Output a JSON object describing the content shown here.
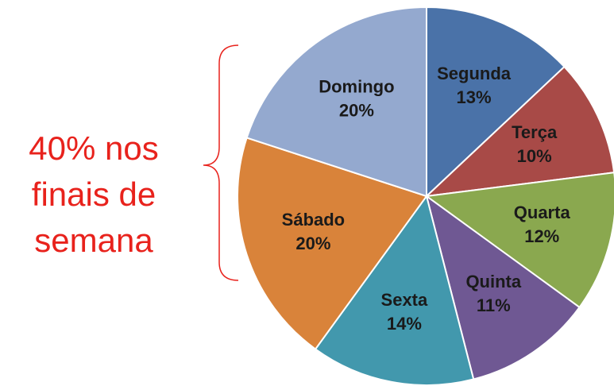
{
  "chart_data": {
    "type": "pie",
    "categories": [
      "Segunda",
      "Terça",
      "Quarta",
      "Quinta",
      "Sexta",
      "Sábado",
      "Domingo"
    ],
    "values": [
      13,
      10,
      12,
      11,
      14,
      20,
      20
    ],
    "value_labels": [
      "13%",
      "10%",
      "12%",
      "11%",
      "14%",
      "20%",
      "20%"
    ],
    "colors": [
      "#4a72a8",
      "#a84a47",
      "#8aa84f",
      "#6f5893",
      "#4298ad",
      "#d9833a",
      "#94a9cf"
    ],
    "annotation": [
      "40% nos",
      "finais de",
      "semana"
    ]
  }
}
